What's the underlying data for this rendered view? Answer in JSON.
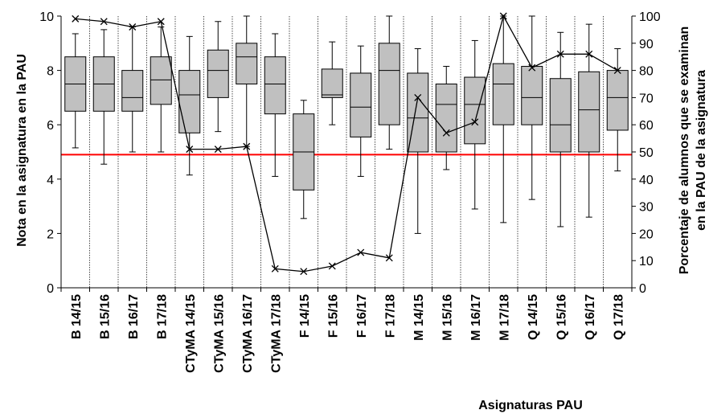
{
  "chart_data": {
    "type": "box",
    "categories": [
      "B 14/15",
      "B 15/16",
      "B 16/17",
      "B 17/18",
      "CTyMA 14/15",
      "CTyMA 15/16",
      "CTyMA 16/17",
      "CTyMA 17/18",
      "F 14/15",
      "F 15/16",
      "F 16/17",
      "F 17/18",
      "M 14/15",
      "M 15/16",
      "M 16/17",
      "M 17/18",
      "Q 14/15",
      "Q 15/16",
      "Q 16/17",
      "Q 17/18"
    ],
    "boxes": [
      {
        "min": 5.15,
        "q1": 6.5,
        "median": 7.5,
        "q3": 8.5,
        "max": 9.35
      },
      {
        "min": 4.55,
        "q1": 6.5,
        "median": 7.5,
        "q3": 8.5,
        "max": 9.5
      },
      {
        "min": 5.0,
        "q1": 6.5,
        "median": 7.0,
        "q3": 8.0,
        "max": 9.6
      },
      {
        "min": 5.0,
        "q1": 6.75,
        "median": 7.65,
        "q3": 8.5,
        "max": 9.6
      },
      {
        "min": 4.15,
        "q1": 5.7,
        "median": 7.1,
        "q3": 8.0,
        "max": 9.25
      },
      {
        "min": 5.75,
        "q1": 7.0,
        "median": 8.0,
        "q3": 8.75,
        "max": 9.8
      },
      {
        "min": 5.2,
        "q1": 7.5,
        "median": 8.5,
        "q3": 9.0,
        "max": 10.0
      },
      {
        "min": 4.1,
        "q1": 6.4,
        "median": 7.5,
        "q3": 8.5,
        "max": 9.35
      },
      {
        "min": 2.55,
        "q1": 3.6,
        "median": 5.0,
        "q3": 6.4,
        "max": 6.9
      },
      {
        "min": 6.0,
        "q1": 7.0,
        "median": 7.1,
        "q3": 8.05,
        "max": 9.05
      },
      {
        "min": 4.1,
        "q1": 5.55,
        "median": 6.65,
        "q3": 7.9,
        "max": 8.9
      },
      {
        "min": 5.1,
        "q1": 6.0,
        "median": 8.0,
        "q3": 9.0,
        "max": 10.0
      },
      {
        "min": 2.0,
        "q1": 5.0,
        "median": 6.25,
        "q3": 7.9,
        "max": 8.8
      },
      {
        "min": 4.35,
        "q1": 5.0,
        "median": 6.75,
        "q3": 7.5,
        "max": 8.15
      },
      {
        "min": 2.9,
        "q1": 5.3,
        "median": 6.75,
        "q3": 7.75,
        "max": 9.1
      },
      {
        "min": 2.4,
        "q1": 6.0,
        "median": 7.5,
        "q3": 8.25,
        "max": 10.0
      },
      {
        "min": 3.25,
        "q1": 6.0,
        "median": 7.0,
        "q3": 8.15,
        "max": 10.0
      },
      {
        "min": 2.25,
        "q1": 5.0,
        "median": 6.0,
        "q3": 7.7,
        "max": 9.4
      },
      {
        "min": 2.6,
        "q1": 5.0,
        "median": 6.55,
        "q3": 7.95,
        "max": 9.7
      },
      {
        "min": 4.3,
        "q1": 5.8,
        "median": 7.0,
        "q3": 8.0,
        "max": 8.8
      }
    ],
    "percentage_series": [
      99,
      98,
      96,
      98,
      51,
      51,
      52,
      7,
      6,
      8,
      13,
      11,
      70,
      57,
      61,
      100,
      81,
      86,
      86,
      80
    ],
    "reference_line": 4.9,
    "ylim_left": [
      0,
      10
    ],
    "yticks_left": [
      0,
      2,
      4,
      6,
      8,
      10
    ],
    "ylim_right": [
      0,
      100
    ],
    "yticks_right": [
      0,
      10,
      20,
      30,
      40,
      50,
      60,
      70,
      80,
      90,
      100
    ],
    "ylabel_left": "Nota en la asignatura en la PAU",
    "ylabel_right_line1": "Porcentaje de alumnos que se examinan",
    "ylabel_right_line2": "en la PAU de la asignatura",
    "xlabel": "Asignaturas PAU",
    "colors": {
      "box_fill": "#c0c0c0",
      "reference": "#ff0000",
      "stroke": "#000000"
    }
  }
}
